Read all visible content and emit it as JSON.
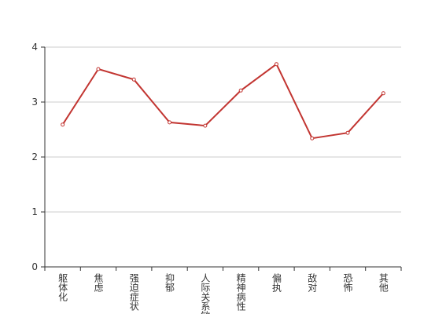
{
  "chart_data": {
    "type": "line",
    "categories": [
      "躯体化",
      "焦虑",
      "强迫症状",
      "抑郁",
      "人际关系敏感",
      "精神病性",
      "偏执",
      "敌对",
      "恐怖",
      "其他"
    ],
    "values": [
      2.59,
      3.6,
      3.41,
      2.63,
      2.57,
      3.21,
      3.69,
      2.34,
      2.44,
      3.16
    ],
    "color": "#c23531",
    "ylim": [
      0,
      4
    ],
    "yticks": [
      0,
      1,
      2,
      3,
      4
    ],
    "grid": true
  }
}
